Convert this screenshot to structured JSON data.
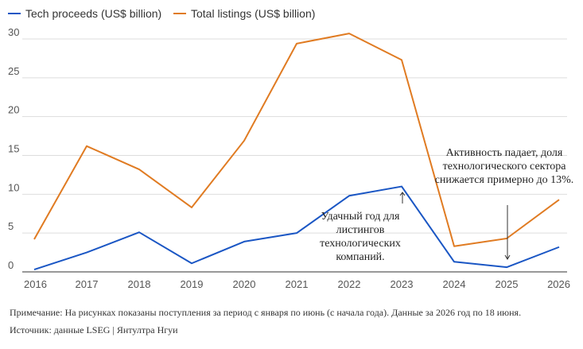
{
  "chart_data": {
    "type": "line",
    "title": "",
    "xlabel": "",
    "ylabel": "",
    "x": [
      2016,
      2017,
      2018,
      2019,
      2020,
      2021,
      2022,
      2023,
      2024,
      2025,
      2026
    ],
    "xlim": [
      2016,
      2026
    ],
    "ylim": [
      0,
      30
    ],
    "yticks": [
      0,
      5,
      10,
      15,
      20,
      25,
      30
    ],
    "grid": true,
    "legend_position": "top-left",
    "series": [
      {
        "name": "Tech proceeds (US$ billion)",
        "color": "#1a56c4",
        "values": [
          0.3,
          2.5,
          5.1,
          1.1,
          3.9,
          5.0,
          9.8,
          11.0,
          1.3,
          0.6,
          3.2
        ]
      },
      {
        "name": "Total listings (US$ billion)",
        "color": "#e07b22",
        "values": [
          4.2,
          16.2,
          13.2,
          8.3,
          16.9,
          29.4,
          30.7,
          27.3,
          3.3,
          4.3,
          9.3
        ]
      }
    ],
    "annotations": [
      {
        "text": "Удачный год для листингов технологических компаний.",
        "x": 2023
      },
      {
        "text": "Активность падает, доля технологического сектора снижается примерно до 13%.",
        "x": 2025
      }
    ]
  },
  "footer": {
    "note": "Примечание: На рисунках показаны поступления за период с января по июнь (с начала года). Данные за 2026 год по 18 июня.",
    "source": "Источник: данные LSEG | Янтултра Нгуи"
  }
}
